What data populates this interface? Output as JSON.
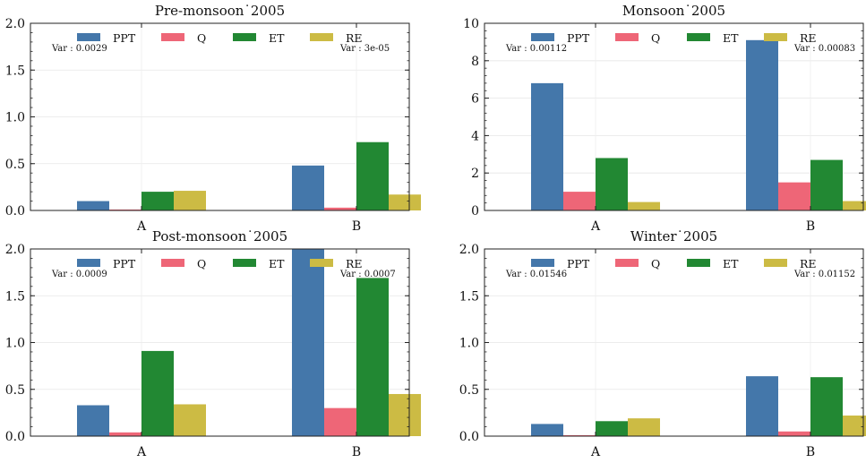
{
  "colors": {
    "PPT": "#4477AA",
    "Q": "#EE6677",
    "ET": "#228833",
    "RE": "#CCBB44"
  },
  "chart_data": [
    {
      "type": "bar",
      "title": "Pre-monsoon˙2005",
      "categories": [
        "A",
        "B"
      ],
      "series": [
        {
          "name": "PPT",
          "values": [
            0.1,
            0.48
          ]
        },
        {
          "name": "Q",
          "values": [
            0.01,
            0.03
          ]
        },
        {
          "name": "ET",
          "values": [
            0.2,
            0.73
          ]
        },
        {
          "name": "RE",
          "values": [
            0.21,
            0.17
          ]
        }
      ],
      "ylim": [
        0,
        2
      ],
      "yticks": [
        "0.0",
        "0.5",
        "1.0",
        "1.5",
        "2.0"
      ],
      "annotations": [
        "Var : 0.0029",
        "Var : 3e-05"
      ],
      "legend": "top",
      "grid": true
    },
    {
      "type": "bar",
      "title": "Monsoon˙2005",
      "categories": [
        "A",
        "B"
      ],
      "series": [
        {
          "name": "PPT",
          "values": [
            6.8,
            9.1
          ]
        },
        {
          "name": "Q",
          "values": [
            1.0,
            1.5
          ]
        },
        {
          "name": "ET",
          "values": [
            2.8,
            2.7
          ]
        },
        {
          "name": "RE",
          "values": [
            0.45,
            0.5
          ]
        }
      ],
      "ylim": [
        0,
        10
      ],
      "yticks": [
        "0",
        "2",
        "4",
        "6",
        "8",
        "10"
      ],
      "annotations": [
        "Var : 0.00112",
        "Var : 0.00083"
      ],
      "legend": "top",
      "grid": true
    },
    {
      "type": "bar",
      "title": "Post-monsoon˙2005",
      "categories": [
        "A",
        "B"
      ],
      "series": [
        {
          "name": "PPT",
          "values": [
            0.33,
            2.0
          ]
        },
        {
          "name": "Q",
          "values": [
            0.04,
            0.3
          ]
        },
        {
          "name": "ET",
          "values": [
            0.91,
            1.69
          ]
        },
        {
          "name": "RE",
          "values": [
            0.34,
            0.45
          ]
        }
      ],
      "ylim": [
        0,
        2
      ],
      "yticks": [
        "0.0",
        "0.5",
        "1.0",
        "1.5",
        "2.0"
      ],
      "annotations": [
        "Var : 0.0009",
        "Var : 0.0007"
      ],
      "legend": "top",
      "grid": true
    },
    {
      "type": "bar",
      "title": "Winter˙2005",
      "categories": [
        "A",
        "B"
      ],
      "series": [
        {
          "name": "PPT",
          "values": [
            0.13,
            0.64
          ]
        },
        {
          "name": "Q",
          "values": [
            0.01,
            0.05
          ]
        },
        {
          "name": "ET",
          "values": [
            0.16,
            0.63
          ]
        },
        {
          "name": "RE",
          "values": [
            0.19,
            0.22
          ]
        }
      ],
      "ylim": [
        0,
        2
      ],
      "yticks": [
        "0.0",
        "0.5",
        "1.0",
        "1.5",
        "2.0"
      ],
      "annotations": [
        "Var : 0.01546",
        "Var : 0.01152"
      ],
      "legend": "top",
      "grid": true
    }
  ]
}
